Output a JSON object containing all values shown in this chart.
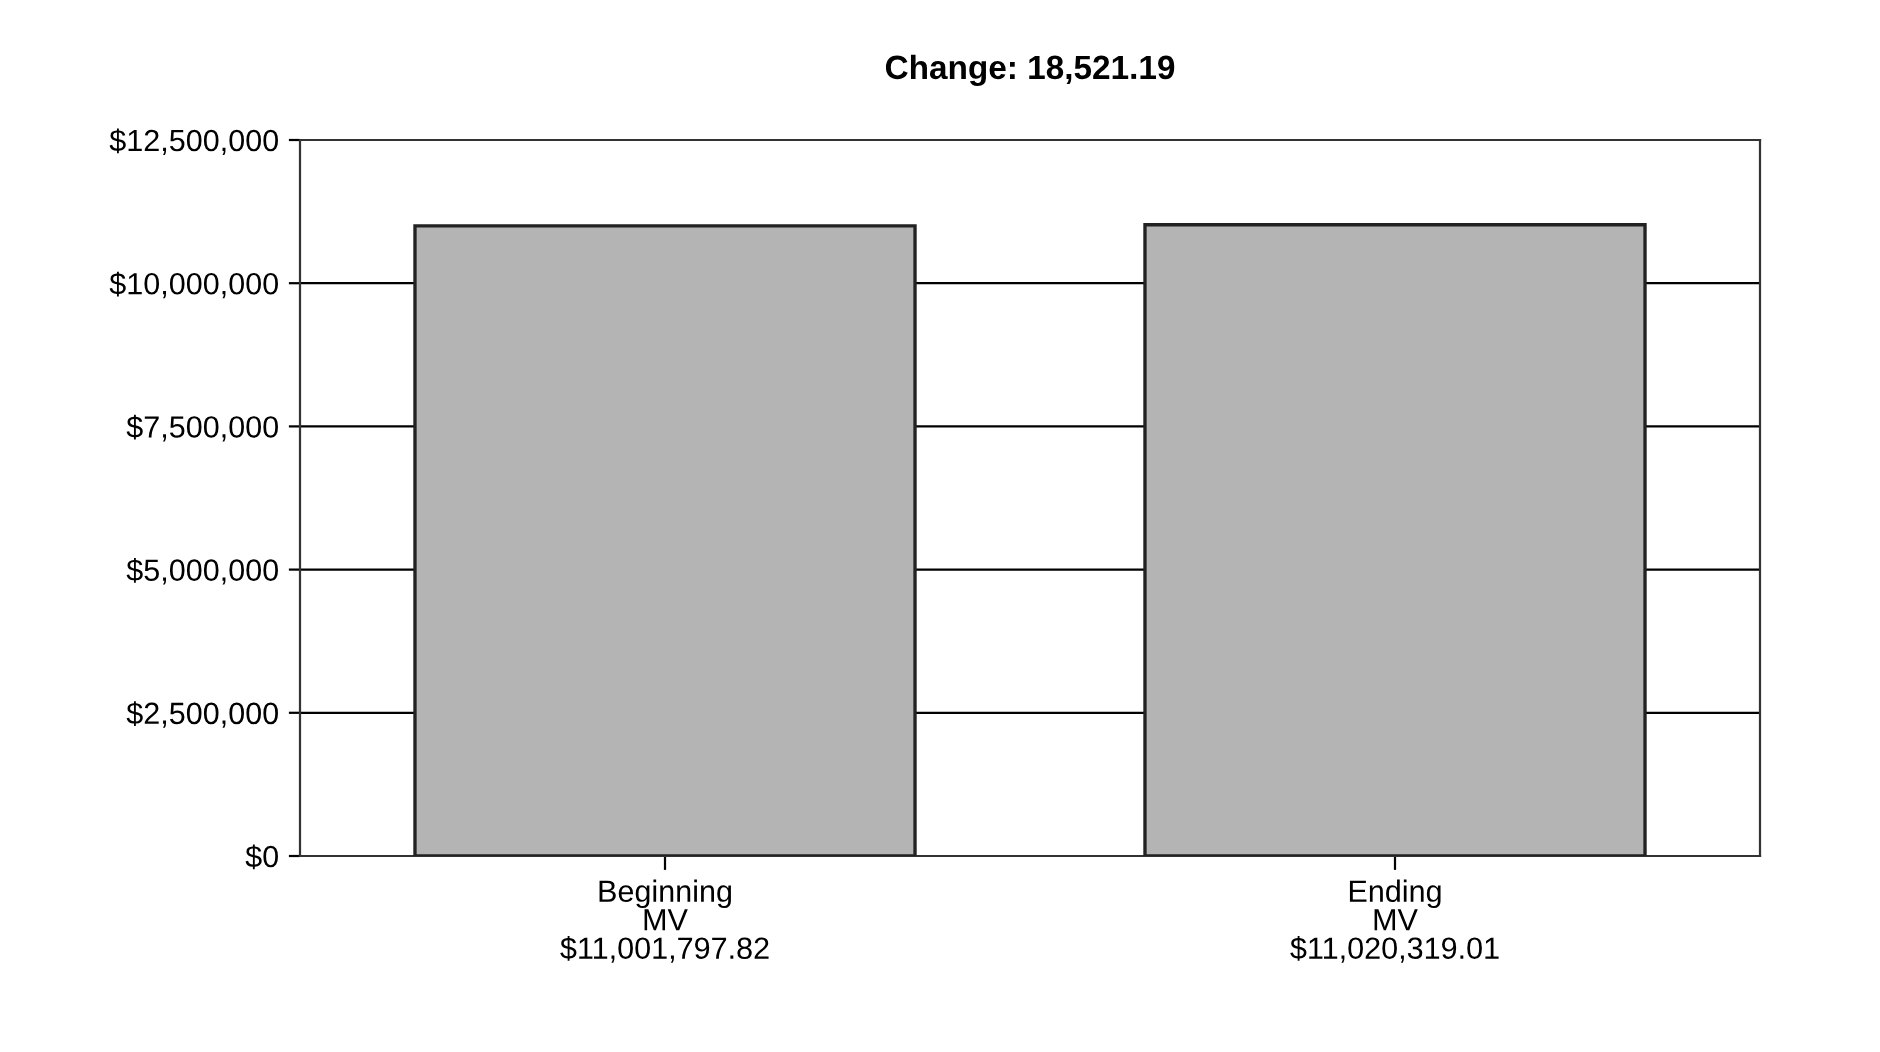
{
  "chart_data": {
    "type": "bar",
    "title": "Change: 18,521.19",
    "categories": [
      "Beginning\nMV\n$11,001,797.82",
      "Ending\nMV\n$11,020,319.01"
    ],
    "values": [
      11001797.82,
      11020319.01
    ],
    "color": "#b4b4b4",
    "ylim": [
      0,
      12500000
    ],
    "yticks": [
      {
        "value": 0,
        "label": "$0"
      },
      {
        "value": 2500000,
        "label": "$2,500,000"
      },
      {
        "value": 5000000,
        "label": "$5,000,000"
      },
      {
        "value": 7500000,
        "label": "$7,500,000"
      },
      {
        "value": 10000000,
        "label": "$10,000,000"
      },
      {
        "value": 12500000,
        "label": "$12,500,000"
      }
    ],
    "grid": "y"
  }
}
